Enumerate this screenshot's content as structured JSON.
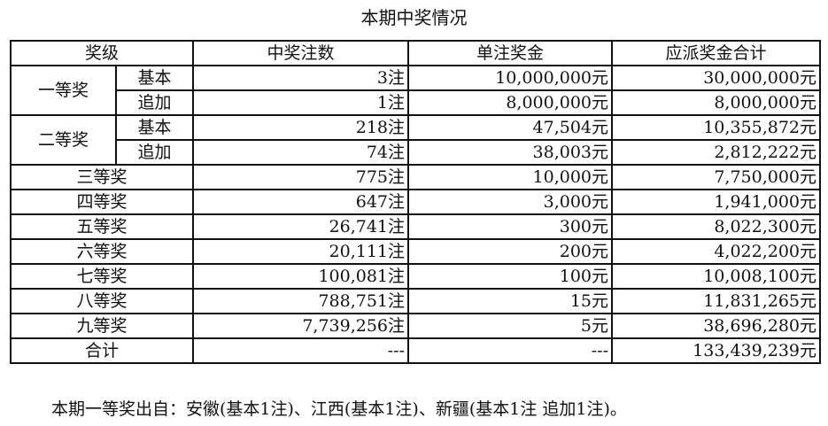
{
  "title": "本期中奖情况",
  "headers": [
    "奖级",
    "中奖注数",
    "单注奖金",
    "应派奖金合计"
  ],
  "group_rows": [
    {
      "level": "一等奖",
      "subs": [
        {
          "type": "基本",
          "count": "3注",
          "prize": "10,000,000元",
          "total": "30,000,000元"
        },
        {
          "type": "追加",
          "count": "1注",
          "prize": "8,000,000元",
          "total": "8,000,000元"
        }
      ]
    },
    {
      "level": "二等奖",
      "subs": [
        {
          "type": "基本",
          "count": "218注",
          "prize": "47,504元",
          "total": "10,355,872元"
        },
        {
          "type": "追加",
          "count": "74注",
          "prize": "38,003元",
          "total": "2,812,222元"
        }
      ]
    }
  ],
  "rows": [
    {
      "level": "三等奖",
      "count": "775注",
      "prize": "10,000元",
      "total": "7,750,000元"
    },
    {
      "level": "四等奖",
      "count": "647注",
      "prize": "3,000元",
      "total": "1,941,000元"
    },
    {
      "level": "五等奖",
      "count": "26,741注",
      "prize": "300元",
      "total": "8,022,300元"
    },
    {
      "level": "六等奖",
      "count": "20,111注",
      "prize": "200元",
      "total": "4,022,200元"
    },
    {
      "level": "七等奖",
      "count": "100,081注",
      "prize": "100元",
      "total": "10,008,100元"
    },
    {
      "level": "八等奖",
      "count": "788,751注",
      "prize": "15元",
      "total": "11,831,265元"
    },
    {
      "level": "九等奖",
      "count": "7,739,256注",
      "prize": "5元",
      "total": "38,696,280元"
    },
    {
      "level": "合计",
      "count": "---",
      "prize": "---",
      "total": "133,439,239元"
    }
  ],
  "note": "本期一等奖出自：安徽(基本1注)、江西(基本1注)、新疆(基本1注 追加1注)。"
}
